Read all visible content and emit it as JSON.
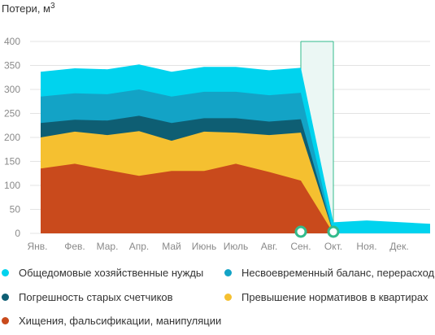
{
  "chart_data": {
    "type": "area",
    "stacked": true,
    "title": "",
    "ylabel": "Потери, м",
    "ylabel_sup": "3",
    "xlabel": "",
    "ylim": [
      0,
      400
    ],
    "yticks": [
      0,
      50,
      100,
      150,
      200,
      250,
      300,
      350,
      400
    ],
    "grid": true,
    "legend_position": "bottom",
    "categories": [
      "Янв.",
      "Фев.",
      "Мар.",
      "Апр.",
      "Май",
      "Июнь",
      "Июль",
      "Авг.",
      "Сен.",
      "Окт.",
      "Ноя.",
      "Дек."
    ],
    "series": [
      {
        "name": "Хищения, фальсификации, манипуляции",
        "color": "#c94a1c",
        "values": [
          135,
          145,
          132,
          120,
          130,
          130,
          145,
          128,
          110,
          0,
          0,
          0
        ]
      },
      {
        "name": "Превышение нормативов в квартирах",
        "color": "#f5c030",
        "values": [
          65,
          67,
          73,
          93,
          63,
          82,
          65,
          77,
          100,
          0,
          0,
          0
        ]
      },
      {
        "name": "Погрешность старых счетчиков",
        "color": "#0e5e73",
        "values": [
          30,
          25,
          30,
          32,
          37,
          28,
          30,
          28,
          28,
          0,
          0,
          0
        ]
      },
      {
        "name": "Несвоевременный баланс, перерасход",
        "color": "#13a3c6",
        "values": [
          55,
          55,
          55,
          55,
          55,
          55,
          55,
          55,
          55,
          0,
          0,
          0
        ]
      },
      {
        "name": "Общедомовые хозяйственные нужды",
        "color": "#00d3ee",
        "values": [
          52,
          52,
          52,
          52,
          52,
          52,
          52,
          52,
          52,
          23,
          27,
          20
        ]
      }
    ],
    "highlight": {
      "from": "Сен.",
      "to": "Окт.",
      "color": "#ebf7f4",
      "line_color": "#33bb8c"
    }
  },
  "legend": {
    "items": [
      {
        "label": "Общедомовые хозяйственные нужды",
        "color": "#00d3ee"
      },
      {
        "label": "Несвоевременный баланс, перерасход",
        "color": "#13a3c6"
      },
      {
        "label": "Погрешность старых счетчиков",
        "color": "#0e5e73"
      },
      {
        "label": "Превышение нормативов в квартирах",
        "color": "#f5c030"
      },
      {
        "label": "Хищения, фальсификации, манипуляции",
        "color": "#c94a1c"
      }
    ]
  }
}
